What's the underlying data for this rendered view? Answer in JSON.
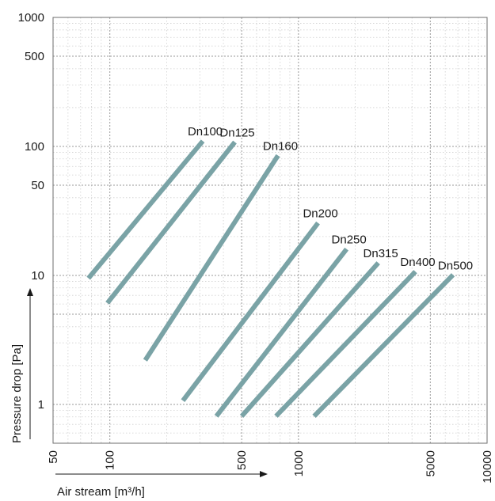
{
  "chart_data": {
    "type": "line",
    "xlabel": "Air stream [m³/h]",
    "ylabel": "Pressure drop [Pa]",
    "xscale": "log",
    "yscale": "log",
    "xlim": [
      50,
      10000
    ],
    "ylim": [
      0.5,
      1000
    ],
    "grid": true,
    "x_ticks": [
      50,
      100,
      500,
      1000,
      5000,
      10000
    ],
    "x_tick_labels": [
      "50",
      "100",
      "500",
      "1000",
      "5000",
      "10000"
    ],
    "y_ticks": [
      1,
      10,
      50,
      100,
      500,
      1000
    ],
    "y_tick_labels": [
      "1",
      "10",
      "50",
      "100",
      "500",
      "1000"
    ],
    "line_color": "#7aa3a6",
    "series": [
      {
        "name": "Dn100",
        "points": [
          [
            77,
            9.5
          ],
          [
            311,
            110
          ]
        ]
      },
      {
        "name": "Dn125",
        "points": [
          [
            97,
            6.1
          ],
          [
            460,
            108
          ]
        ]
      },
      {
        "name": "Dn160",
        "points": [
          [
            154,
            2.2
          ],
          [
            779,
            85
          ]
        ]
      },
      {
        "name": "Dn200",
        "points": [
          [
            244,
            1.07
          ],
          [
            1270,
            25.5
          ]
        ]
      },
      {
        "name": "Dn250",
        "points": [
          [
            367,
            0.81
          ],
          [
            1800,
            16
          ]
        ]
      },
      {
        "name": "Dn315",
        "points": [
          [
            500,
            0.81
          ],
          [
            2650,
            12.5
          ]
        ]
      },
      {
        "name": "Dn400",
        "points": [
          [
            760,
            0.81
          ],
          [
            4170,
            10.7
          ]
        ]
      },
      {
        "name": "Dn500",
        "points": [
          [
            1210,
            0.81
          ],
          [
            6600,
            10.1
          ]
        ]
      }
    ]
  }
}
